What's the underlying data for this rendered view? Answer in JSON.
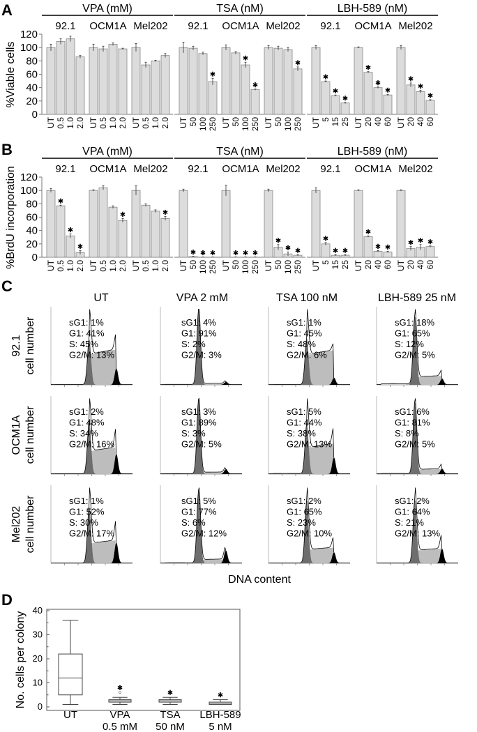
{
  "panels": {
    "A": "A",
    "B": "B",
    "C": "C",
    "D": "D"
  },
  "chart_data": [
    {
      "type": "bar",
      "id": "A",
      "ylabel": "%Viable cells",
      "ylim": [
        0,
        120
      ],
      "yticks": [
        0,
        20,
        40,
        60,
        80,
        100,
        120
      ],
      "drug_groups": [
        "VPA (mM)",
        "TSA (nM)",
        "LBH-589 (nM)"
      ],
      "groups": [
        {
          "drug": "VPA",
          "cell_line": "92.1",
          "doses": [
            "UT",
            "0.5",
            "1.0",
            "2.0"
          ],
          "values": [
            100,
            109,
            113,
            86
          ],
          "errors": [
            5,
            4,
            4,
            2
          ],
          "sig": [
            false,
            false,
            false,
            false
          ]
        },
        {
          "drug": "VPA",
          "cell_line": "OCM1A",
          "doses": [
            "UT",
            "0.5",
            "1.0",
            "2.0"
          ],
          "values": [
            100,
            98,
            105,
            98
          ],
          "errors": [
            5,
            4,
            2,
            1
          ],
          "sig": [
            false,
            false,
            false,
            false
          ]
        },
        {
          "drug": "VPA",
          "cell_line": "Mel202",
          "doses": [
            "UT",
            "0.5",
            "1.0",
            "2.0"
          ],
          "values": [
            100,
            74,
            80,
            88
          ],
          "errors": [
            6,
            4,
            1,
            3
          ],
          "sig": [
            false,
            false,
            false,
            false
          ]
        },
        {
          "drug": "TSA",
          "cell_line": "92.1",
          "doses": [
            "UT",
            "50",
            "100",
            "250"
          ],
          "values": [
            100,
            99,
            91,
            49
          ],
          "errors": [
            8,
            3,
            2,
            5
          ],
          "sig": [
            false,
            false,
            false,
            true
          ]
        },
        {
          "drug": "TSA",
          "cell_line": "OCM1A",
          "doses": [
            "UT",
            "50",
            "100",
            "250"
          ],
          "values": [
            100,
            92,
            74,
            37
          ],
          "errors": [
            4,
            2,
            4,
            1
          ],
          "sig": [
            false,
            false,
            true,
            true
          ]
        },
        {
          "drug": "TSA",
          "cell_line": "Mel202",
          "doses": [
            "UT",
            "50",
            "100",
            "250"
          ],
          "values": [
            100,
            99,
            97,
            68
          ],
          "errors": [
            3,
            3,
            3,
            3
          ],
          "sig": [
            false,
            false,
            false,
            true
          ]
        },
        {
          "drug": "LBH-589",
          "cell_line": "92.1",
          "doses": [
            "UT",
            "5",
            "15",
            "25"
          ],
          "values": [
            100,
            49,
            28,
            17
          ],
          "errors": [
            3,
            1,
            1,
            1
          ],
          "sig": [
            false,
            true,
            true,
            true
          ]
        },
        {
          "drug": "LBH-589",
          "cell_line": "OCM1A",
          "doses": [
            "UT",
            "20",
            "40",
            "60"
          ],
          "values": [
            100,
            63,
            40,
            29
          ],
          "errors": [
            1,
            1,
            1,
            1
          ],
          "sig": [
            false,
            true,
            true,
            true
          ]
        },
        {
          "drug": "LBH-589",
          "cell_line": "Mel202",
          "doses": [
            "UT",
            "20",
            "40",
            "60"
          ],
          "values": [
            100,
            44,
            34,
            21
          ],
          "errors": [
            3,
            3,
            2,
            1
          ],
          "sig": [
            false,
            true,
            true,
            true
          ]
        }
      ]
    },
    {
      "type": "bar",
      "id": "B",
      "ylabel": "%BrdU incorporation",
      "ylim": [
        0,
        120
      ],
      "yticks": [
        0,
        20,
        40,
        60,
        80,
        100,
        120
      ],
      "drug_groups": [
        "VPA (mM)",
        "TSA (nM)",
        "LBH-589 (nM)"
      ],
      "groups": [
        {
          "drug": "VPA",
          "cell_line": "92.1",
          "doses": [
            "UT",
            "0.5",
            "1.0",
            "2.0"
          ],
          "values": [
            100,
            77,
            32,
            7
          ],
          "errors": [
            3,
            1,
            3,
            3
          ],
          "sig": [
            false,
            true,
            true,
            true
          ]
        },
        {
          "drug": "VPA",
          "cell_line": "OCM1A",
          "doses": [
            "UT",
            "0.5",
            "1.0",
            "2.0"
          ],
          "values": [
            100,
            104,
            75,
            55
          ],
          "errors": [
            1,
            3,
            2,
            3
          ],
          "sig": [
            false,
            false,
            false,
            true
          ]
        },
        {
          "drug": "VPA",
          "cell_line": "Mel202",
          "doses": [
            "UT",
            "0.5",
            "1.0",
            "2.0"
          ],
          "values": [
            100,
            78,
            69,
            58
          ],
          "errors": [
            7,
            2,
            2,
            3
          ],
          "sig": [
            false,
            false,
            false,
            true
          ]
        },
        {
          "drug": "TSA",
          "cell_line": "92.1",
          "doses": [
            "UT",
            "50",
            "100",
            "250"
          ],
          "values": [
            100,
            1,
            0,
            0
          ],
          "errors": [
            2,
            0.5,
            0.5,
            0.5
          ],
          "sig": [
            false,
            true,
            true,
            true
          ]
        },
        {
          "drug": "TSA",
          "cell_line": "OCM1A",
          "doses": [
            "UT",
            "50",
            "100",
            "250"
          ],
          "values": [
            100,
            0,
            0,
            0
          ],
          "errors": [
            8,
            0.5,
            0.5,
            0.5
          ],
          "sig": [
            false,
            true,
            true,
            true
          ]
        },
        {
          "drug": "TSA",
          "cell_line": "Mel202",
          "doses": [
            "UT",
            "50",
            "100",
            "250"
          ],
          "values": [
            100,
            15,
            5,
            3
          ],
          "errors": [
            2,
            4,
            3,
            1
          ],
          "sig": [
            false,
            true,
            true,
            true
          ]
        },
        {
          "drug": "LBH-589",
          "cell_line": "92.1",
          "doses": [
            "UT",
            "5",
            "15",
            "25"
          ],
          "values": [
            100,
            20,
            3,
            3
          ],
          "errors": [
            4,
            2,
            1,
            1
          ],
          "sig": [
            false,
            true,
            true,
            true
          ]
        },
        {
          "drug": "LBH-589",
          "cell_line": "OCM1A",
          "doses": [
            "UT",
            "20",
            "40",
            "60"
          ],
          "values": [
            100,
            31,
            9,
            8
          ],
          "errors": [
            1,
            1,
            1,
            1
          ],
          "sig": [
            false,
            true,
            true,
            true
          ]
        },
        {
          "drug": "LBH-589",
          "cell_line": "Mel202",
          "doses": [
            "UT",
            "20",
            "40",
            "60"
          ],
          "values": [
            100,
            13,
            15,
            16
          ],
          "errors": [
            1,
            3,
            4,
            1
          ],
          "sig": [
            false,
            true,
            true,
            true
          ]
        }
      ]
    },
    {
      "type": "histogram",
      "id": "C",
      "xlabel": "DNA content",
      "ylabel": "cell number",
      "columns": [
        "UT",
        "VPA 2 mM",
        "TSA 100 nM",
        "LBH-589 25 nM"
      ],
      "rows": [
        "92.1",
        "OCM1A",
        "Mel202"
      ],
      "stats": [
        [
          {
            "sG1": 1,
            "G1": 41,
            "S": 45,
            "G2M": 13
          },
          {
            "sG1": 4,
            "G1": 91,
            "S": 2,
            "G2M": 3
          },
          {
            "sG1": 1,
            "G1": 45,
            "S": 48,
            "G2M": 6
          },
          {
            "sG1": 18,
            "G1": 65,
            "S": 12,
            "G2M": 5
          }
        ],
        [
          {
            "sG1": 2,
            "G1": 48,
            "S": 34,
            "G2M": 16
          },
          {
            "sG1": 3,
            "G1": 89,
            "S": 3,
            "G2M": 5
          },
          {
            "sG1": 5,
            "G1": 44,
            "S": 38,
            "G2M": 13
          },
          {
            "sG1": 6,
            "G1": 81,
            "S": 8,
            "G2M": 5
          }
        ],
        [
          {
            "sG1": 1,
            "G1": 52,
            "S": 30,
            "G2M": 17
          },
          {
            "sG1": 5,
            "G1": 77,
            "S": 6,
            "G2M": 12
          },
          {
            "sG1": 2,
            "G1": 65,
            "S": 23,
            "G2M": 10
          },
          {
            "sG1": 2,
            "G1": 64,
            "S": 21,
            "G2M": 13
          }
        ]
      ]
    },
    {
      "type": "box",
      "id": "D",
      "ylabel": "No. cells per colony",
      "ylim": [
        0,
        40
      ],
      "yticks": [
        0,
        10,
        20,
        30,
        40
      ],
      "categories": [
        [
          "UT"
        ],
        [
          "VPA",
          "0.5 mM"
        ],
        [
          "TSA",
          "50 nM"
        ],
        [
          "LBH-589",
          "5 nM"
        ]
      ],
      "boxes": [
        {
          "min": 1,
          "q1": 5,
          "median": 12,
          "q3": 22,
          "max": 36,
          "outliers": [],
          "sig": false
        },
        {
          "min": 1,
          "q1": 2,
          "median": 2.5,
          "q3": 3,
          "max": 4,
          "outliers": [
            6
          ],
          "sig": true
        },
        {
          "min": 1,
          "q1": 2,
          "median": 2.5,
          "q3": 3,
          "max": 4,
          "outliers": [],
          "sig": true
        },
        {
          "min": 1,
          "q1": 1,
          "median": 1.5,
          "q3": 2,
          "max": 3,
          "outliers": [],
          "sig": true
        }
      ]
    }
  ],
  "colors": {
    "bar": "#dcdcdc",
    "g1": "#6e6e6e",
    "s": "#bdbdbd",
    "g2": "#000000"
  }
}
